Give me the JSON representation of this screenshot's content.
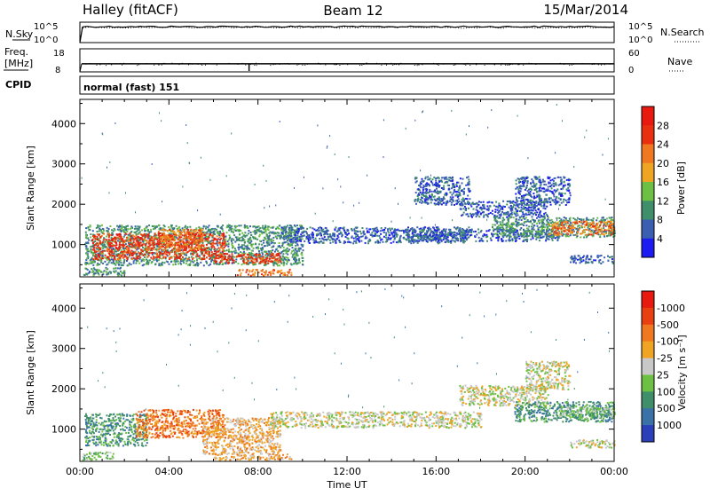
{
  "header": {
    "station": "Halley (fitACF)",
    "beam": "Beam 12",
    "date": "15/Mar/2014"
  },
  "chart_data": [
    {
      "type": "line",
      "panel": "noise",
      "left_label": "N.Sky",
      "right_label": "N.Search",
      "left_ticks": [
        "10^5",
        "10^0"
      ],
      "right_ticks": [
        "10^5",
        "10^0"
      ],
      "series": [
        {
          "name": "N.Sky",
          "style": "solid",
          "color": "#000000",
          "level": 0.78
        },
        {
          "name": "N.Search",
          "style": "dotted",
          "color": "#000000",
          "level": 0.74
        }
      ]
    },
    {
      "type": "line",
      "panel": "frequency",
      "left_label_line1": "Freq.",
      "left_label_line2": "[MHz]",
      "right_label": "Nave",
      "left_ticks": [
        {
          "label": "18",
          "value": 18
        },
        {
          "label": "8",
          "value": 8
        }
      ],
      "right_ticks": [
        {
          "label": "60",
          "value": 60
        },
        {
          "label": "0",
          "value": 0
        }
      ],
      "ylim": [
        8,
        18
      ],
      "freq_mhz": 11.5,
      "nave_typical": 22,
      "nave_dip_hour": 7.6
    },
    {
      "type": "table",
      "panel": "cpid",
      "label": "CPID",
      "program": "normal (fast) 151"
    },
    {
      "type": "heatmap",
      "panel": "power",
      "ylabel": "Slant Range [km]",
      "y_ticks": [
        1000,
        2000,
        3000,
        4000
      ],
      "ylim": [
        200,
        4600
      ],
      "xlim": [
        0,
        24
      ],
      "colorbar": {
        "label": "Power [dB]",
        "ticks": [
          "4",
          "8",
          "12",
          "16",
          "20",
          "24",
          "28"
        ],
        "colors": [
          "#1c1cf0",
          "#3b5fb0",
          "#3f8f6a",
          "#6dc043",
          "#f0a424",
          "#f07820",
          "#e83010",
          "#e81a10"
        ]
      },
      "regions": [
        {
          "t0": 0.2,
          "t1": 10.0,
          "r0": 500,
          "r1": 1500,
          "level": 2
        },
        {
          "t0": 0.5,
          "t1": 6.5,
          "r0": 650,
          "r1": 1300,
          "level": 6
        },
        {
          "t0": 3.5,
          "t1": 5.5,
          "r0": 900,
          "r1": 1400,
          "level": 5
        },
        {
          "t0": 6.0,
          "t1": 9.0,
          "r0": 550,
          "r1": 800,
          "level": 6
        },
        {
          "t0": 7.0,
          "t1": 9.5,
          "r0": 250,
          "r1": 400,
          "level": 5
        },
        {
          "t0": 9.0,
          "t1": 17.5,
          "r0": 1050,
          "r1": 1450,
          "level": 1
        },
        {
          "t0": 14.5,
          "t1": 21.5,
          "r0": 1100,
          "r1": 1400,
          "level": 1
        },
        {
          "t0": 17.0,
          "t1": 21.0,
          "r0": 1700,
          "r1": 2100,
          "level": 1
        },
        {
          "t0": 19.5,
          "t1": 22.0,
          "r0": 2000,
          "r1": 2700,
          "level": 1
        },
        {
          "t0": 18.5,
          "t1": 24.0,
          "r0": 1200,
          "r1": 1700,
          "level": 2
        },
        {
          "t0": 21.0,
          "t1": 24.0,
          "r0": 1250,
          "r1": 1600,
          "level": 5
        },
        {
          "t0": 0.1,
          "t1": 2.0,
          "r0": 250,
          "r1": 450,
          "level": 2
        },
        {
          "t0": 22.0,
          "t1": 24.0,
          "r0": 550,
          "r1": 750,
          "level": 1
        },
        {
          "t0": 15.0,
          "t1": 17.5,
          "r0": 2000,
          "r1": 2700,
          "level": 1
        }
      ]
    },
    {
      "type": "heatmap",
      "panel": "velocity",
      "ylabel": "Slant Range [km]",
      "y_ticks": [
        1000,
        2000,
        3000,
        4000
      ],
      "ylim": [
        200,
        4600
      ],
      "xlim": [
        0,
        24
      ],
      "xlabel": "Time UT",
      "x_tick_labels": [
        "00:00",
        "04:00",
        "08:00",
        "12:00",
        "16:00",
        "20:00",
        "00:00"
      ],
      "x_ticks": [
        0,
        4,
        8,
        12,
        16,
        20,
        24
      ],
      "colorbar": {
        "label": "Velocity [m s⁻¹]",
        "ticks": [
          "1000",
          "500",
          "100",
          "25",
          "-25",
          "-100",
          "-500",
          "-1000"
        ],
        "colors": [
          "#2a3fb8",
          "#3a72a8",
          "#3f8f6a",
          "#6dc043",
          "#c8c8c8",
          "#f0a424",
          "#f07820",
          "#e84010",
          "#e81a10"
        ]
      },
      "regions": [
        {
          "t0": 0.2,
          "t1": 3.0,
          "r0": 600,
          "r1": 1400,
          "level": 2
        },
        {
          "t0": 2.5,
          "t1": 6.5,
          "r0": 800,
          "r1": 1500,
          "level": 6
        },
        {
          "t0": 5.5,
          "t1": 9.0,
          "r0": 400,
          "r1": 1300,
          "level": 5
        },
        {
          "t0": 6.0,
          "t1": 9.5,
          "r0": 250,
          "r1": 400,
          "level": 5
        },
        {
          "t0": 8.5,
          "t1": 18.0,
          "r0": 1050,
          "r1": 1450,
          "level": 4
        },
        {
          "t0": 17.0,
          "t1": 21.0,
          "r0": 1600,
          "r1": 2100,
          "level": 4
        },
        {
          "t0": 20.0,
          "t1": 22.0,
          "r0": 2000,
          "r1": 2700,
          "level": 4
        },
        {
          "t0": 19.5,
          "t1": 24.0,
          "r0": 1200,
          "r1": 1700,
          "level": 2
        },
        {
          "t0": 21.5,
          "t1": 24.0,
          "r0": 1300,
          "r1": 1600,
          "level": 3
        },
        {
          "t0": 0.1,
          "t1": 1.5,
          "r0": 250,
          "r1": 450,
          "level": 3
        },
        {
          "t0": 22.0,
          "t1": 24.0,
          "r0": 550,
          "r1": 750,
          "level": 4
        }
      ]
    }
  ]
}
